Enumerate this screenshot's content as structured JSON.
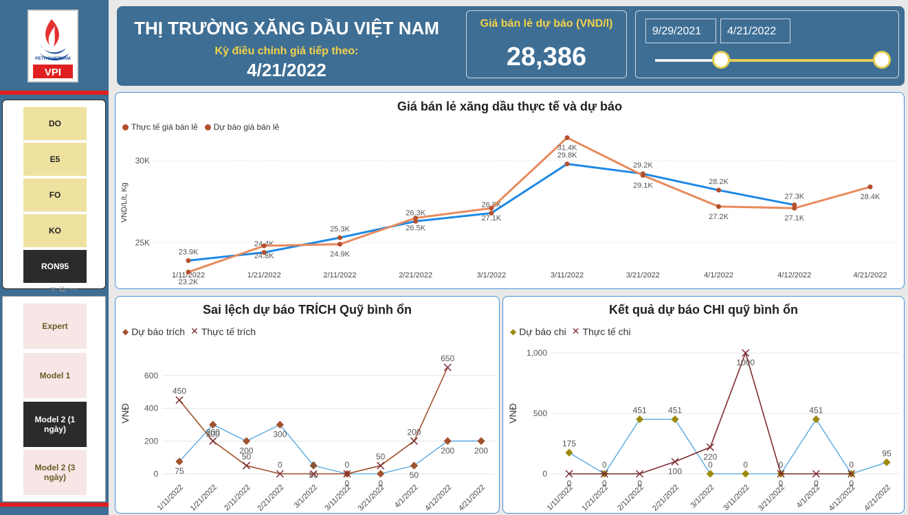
{
  "header": {
    "title": "THỊ TRƯỜNG XĂNG DẦU VIỆT NAM",
    "next_label": "Kỳ điều chỉnh giá tiếp theo:",
    "next_date": "4/21/2022"
  },
  "kpi": {
    "label": "Giá bán lẻ dự báo (VND/l)",
    "value": "28,386"
  },
  "slicer": {
    "start": "9/29/2021",
    "end": "4/21/2022",
    "range": [
      0.29,
      1.0
    ]
  },
  "logo": {
    "brand": "PETROVIETNAM",
    "sub": "VPI"
  },
  "fuels": [
    {
      "label": "DO"
    },
    {
      "label": "E5"
    },
    {
      "label": "FO"
    },
    {
      "label": "KO"
    },
    {
      "label": "RON95",
      "selected": true
    }
  ],
  "models": [
    {
      "label": "Expert"
    },
    {
      "label": "Model 1"
    },
    {
      "label": "Model 2 (1 ngày)",
      "selected": true
    },
    {
      "label": "Model 2 (3 ngày)"
    }
  ],
  "colors": {
    "header": "#3e6e94",
    "blue": "#1e88e5",
    "orange": "#e8895c",
    "dot": "#b5502d",
    "red": "#a0522d",
    "maroon": "#7a2a30",
    "olive": "#9c8a0e"
  },
  "chart_data": [
    {
      "type": "line",
      "title": "Giá bán lẻ xăng dầu thực tế và dự báo",
      "ylabel": "VND/Lít, Kg",
      "ylim": [
        23000,
        31800
      ],
      "yticks": [
        {
          "v": 25000,
          "label": "25K"
        },
        {
          "v": 30000,
          "label": "30K"
        }
      ],
      "categories": [
        "1/11/2022",
        "1/21/2022",
        "2/11/2022",
        "2/21/2022",
        "3/1/2022",
        "3/11/2022",
        "3/21/2022",
        "4/1/2022",
        "4/12/2022",
        "4/21/2022"
      ],
      "series": [
        {
          "name": "Thực tế giá bán lẻ",
          "values": [
            23.9,
            24.4,
            25.3,
            26.3,
            26.8,
            29.8,
            29.2,
            28.2,
            27.3,
            null
          ],
          "labels": [
            "23.9K",
            "24.4K",
            "25.3K",
            "26.3K",
            "26.8K",
            "29.8K",
            "29.2K",
            "28.2K",
            "27.3K",
            ""
          ]
        },
        {
          "name": "Dự báo giá bán lẻ",
          "values": [
            23.2,
            24.8,
            24.9,
            26.5,
            27.1,
            31.4,
            29.1,
            27.2,
            27.1,
            28.4
          ],
          "labels": [
            "23.2K",
            "24.8K",
            "24.9K",
            "26.5K",
            "27.1K",
            "31.4K",
            "29.1K",
            "27.2K",
            "27.1K",
            "28.4K"
          ]
        }
      ]
    },
    {
      "type": "line",
      "title": "Sai lệch dự báo TRÍCH Quỹ bình ổn",
      "ylabel": "VNĐ",
      "ylim": [
        0,
        650
      ],
      "yticks": [
        {
          "v": 0,
          "label": "0"
        },
        {
          "v": 200,
          "label": "200"
        },
        {
          "v": 400,
          "label": "400"
        },
        {
          "v": 600,
          "label": "600"
        }
      ],
      "categories": [
        "1/11/2022",
        "1/21/2022",
        "2/11/2022",
        "2/21/2022",
        "3/1/2022",
        "3/11/2022",
        "3/21/2022",
        "4/1/2022",
        "4/12/2022",
        "4/21/2022"
      ],
      "series": [
        {
          "name": "Dự báo trích",
          "values": [
            75,
            300,
            200,
            300,
            50,
            0,
            0,
            50,
            200,
            200
          ],
          "labels": [
            "75",
            "300",
            "200",
            "300",
            "50",
            "0",
            "0",
            "50",
            "200",
            "200"
          ]
        },
        {
          "name": "Thực tế trích",
          "values": [
            450,
            200,
            50,
            0,
            0,
            0,
            50,
            200,
            650,
            null
          ],
          "labels": [
            "450",
            "200",
            "50",
            "0",
            "0",
            "0",
            "50",
            "200",
            "650",
            ""
          ]
        }
      ]
    },
    {
      "type": "line",
      "title": "Kết quả dự báo CHI quỹ bình ổn",
      "ylabel": "VNĐ",
      "ylim": [
        0,
        1000
      ],
      "yticks": [
        {
          "v": 0,
          "label": "0"
        },
        {
          "v": 500,
          "label": "500"
        },
        {
          "v": 1000,
          "label": "1,000"
        }
      ],
      "categories": [
        "1/11/2022",
        "1/21/2022",
        "2/11/2022",
        "2/21/2022",
        "3/1/2022",
        "3/11/2022",
        "3/21/2022",
        "4/1/2022",
        "4/12/2022",
        "4/21/2022"
      ],
      "series": [
        {
          "name": "Dự báo chi",
          "values": [
            175,
            0,
            451,
            451,
            0,
            0,
            0,
            451,
            0,
            95
          ],
          "labels": [
            "175",
            "0",
            "451",
            "451",
            "0",
            "0",
            "0",
            "451",
            "0",
            "95"
          ]
        },
        {
          "name": "Thực tế chi",
          "values": [
            0,
            0,
            0,
            100,
            220,
            1000,
            0,
            0,
            0,
            null
          ],
          "labels": [
            "0",
            "0",
            "0",
            "100",
            "220",
            "1000",
            "0",
            "0",
            "0",
            ""
          ]
        }
      ]
    }
  ]
}
